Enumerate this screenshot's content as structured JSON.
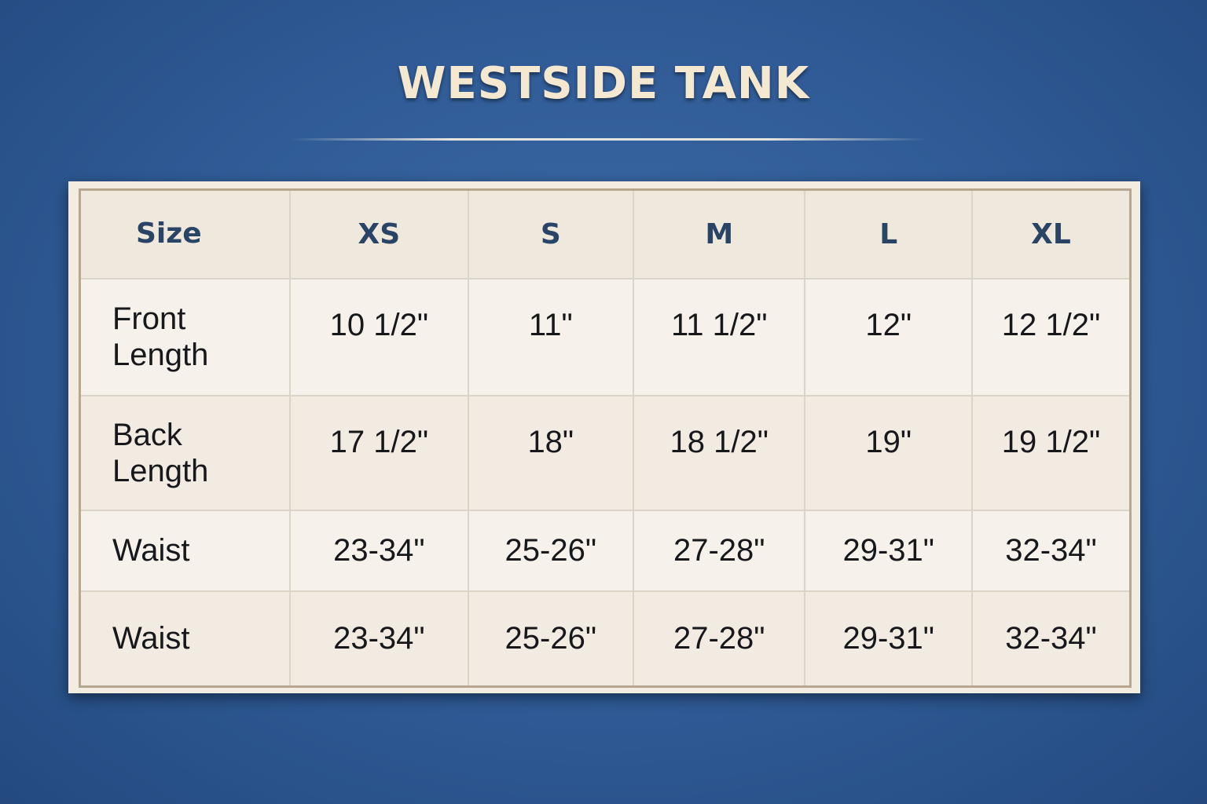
{
  "title": "WESTSIDE TANK",
  "table": {
    "headers": [
      "Size",
      "XS",
      "S",
      "M",
      "L",
      "XL"
    ],
    "rows": [
      {
        "label_line1": "Front",
        "label_line2": "Length",
        "values": [
          "10 1/2\"",
          "11\"",
          "11 1/2\"",
          "12\"",
          "12 1/2\""
        ]
      },
      {
        "label_line1": "Back",
        "label_line2": "Length",
        "values": [
          "17 1/2\"",
          "18\"",
          "18 1/2\"",
          "19\"",
          "19 1/2\""
        ]
      },
      {
        "label_line1": "Waist",
        "label_line2": "",
        "values": [
          "23-34\"",
          "25-26\"",
          "27-28\"",
          "29-31\"",
          "32-34\""
        ]
      },
      {
        "label_line1": "Waist",
        "label_line2": "",
        "values": [
          "23-34\"",
          "25-26\"",
          "27-28\"",
          "29-31\"",
          "32-34\""
        ]
      }
    ]
  },
  "colors": {
    "background": "#2f5a95",
    "title": "#f4e8d0",
    "header_text": "#2a4466",
    "card": "#f3ece1"
  }
}
